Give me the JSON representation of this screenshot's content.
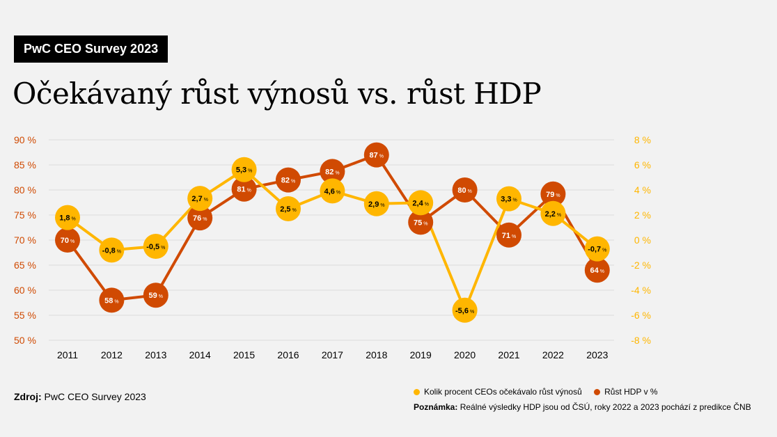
{
  "badge": "PwC CEO Survey 2023",
  "title": "Očekávaný růst výnosů vs. růst HDP",
  "source": {
    "label": "Zdroj:",
    "text": "PwC CEO Survey 2023"
  },
  "note": {
    "label": "Poznámka:",
    "text": "Reálné výsledky HDP jsou od ČSÚ, roky 2022 a 2023 pochází z predikce ČNB"
  },
  "colors": {
    "yellow": "#FFB600",
    "orange": "#D04A02",
    "grid": "#dcdcdc"
  },
  "chart_data": {
    "type": "line",
    "categories": [
      "2011",
      "2012",
      "2013",
      "2014",
      "2015",
      "2016",
      "2017",
      "2018",
      "2019",
      "2020",
      "2021",
      "2022",
      "2023"
    ],
    "y_left": {
      "ticks": [
        90,
        85,
        80,
        75,
        70,
        65,
        60,
        55,
        50
      ],
      "tick_labels": [
        "90 %",
        "85 %",
        "80 %",
        "75 %",
        "70 %",
        "65 %",
        "60 %",
        "55 %",
        "50 %"
      ],
      "range": [
        50,
        90
      ]
    },
    "y_right": {
      "ticks": [
        8,
        6,
        4,
        2,
        0,
        -2,
        -4,
        -6,
        -8
      ],
      "tick_labels": [
        "8 %",
        "6 %",
        "4 %",
        "2 %",
        "0 %",
        "-2 %",
        "-4 %",
        "-6 %",
        "-8 %"
      ],
      "range": [
        -8,
        8
      ]
    },
    "grid": true,
    "legend_position": "bottom-right",
    "series": [
      {
        "name": "Kolik procent CEOs očekávalo růst výnosů",
        "color": "#FFB600",
        "axis": "right",
        "values": [
          1.8,
          -0.8,
          -0.5,
          2.7,
          5.3,
          2.5,
          4.6,
          2.9,
          2.4,
          -5.6,
          3.3,
          2.2,
          -0.7
        ],
        "labels": [
          "1,8",
          "-0,8",
          "-0,5",
          "2,7",
          "5,3",
          "2,5",
          "4,6",
          "2,9",
          "2,4",
          "-5,6",
          "3,3",
          "2,2",
          "-0,7"
        ]
      },
      {
        "name": "Růst HDP v %",
        "color": "#D04A02",
        "axis": "left",
        "values": [
          70,
          58,
          59,
          76,
          81,
          82,
          82,
          87,
          75,
          80,
          71,
          79,
          64
        ],
        "labels": [
          "70",
          "58",
          "59",
          "76",
          "81",
          "82",
          "82",
          "87",
          "75",
          "80",
          "71",
          "79",
          "64"
        ]
      }
    ],
    "unit": "%"
  }
}
